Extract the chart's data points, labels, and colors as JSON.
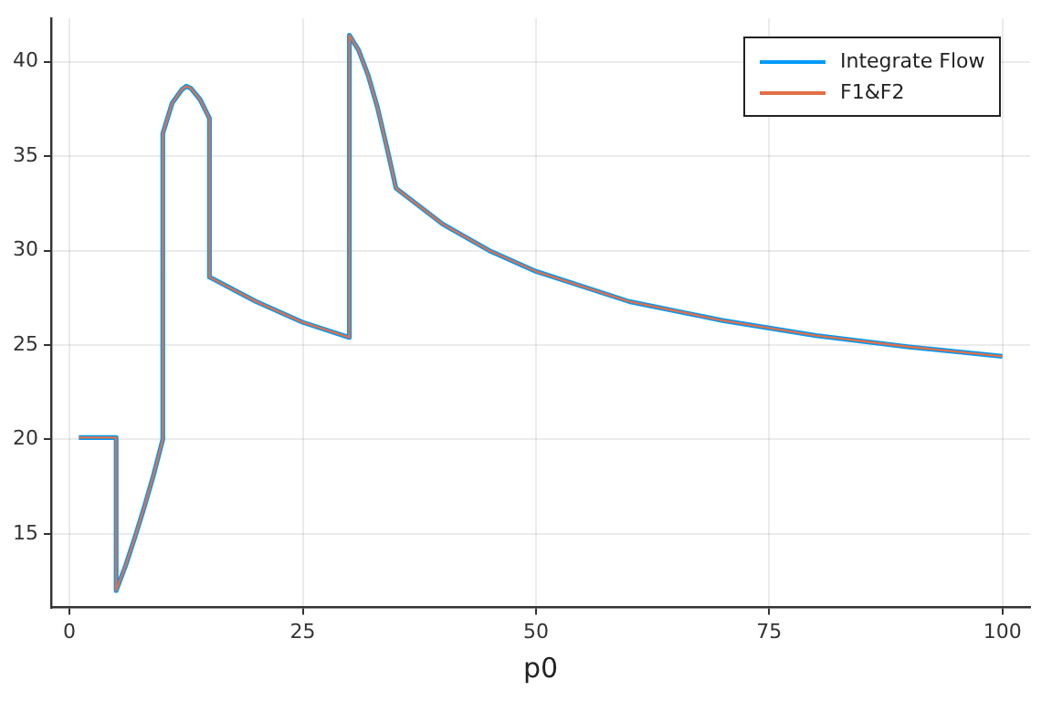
{
  "chart_data": {
    "type": "line",
    "xlabel": "p0",
    "xlim": [
      -1.97,
      102.97
    ],
    "ylim": [
      11.1,
      42.3
    ],
    "xticks": [
      0,
      25,
      50,
      75,
      100
    ],
    "yticks": [
      15,
      20,
      25,
      30,
      35,
      40
    ],
    "grid": true,
    "legend": "top right",
    "series": [
      {
        "name": "Integrate Flow",
        "color": "#009af9",
        "x": [
          1,
          5,
          5,
          6,
          7,
          8,
          9,
          10,
          10,
          11,
          12,
          12.5,
          13,
          14,
          15,
          15,
          20,
          25,
          30,
          30,
          31,
          32,
          33,
          34,
          35,
          40,
          45,
          50,
          60,
          70,
          80,
          90,
          100
        ],
        "values": [
          20.1,
          20.1,
          12,
          13.3,
          14.8,
          16.4,
          18.1,
          20,
          36.2,
          37.8,
          38.5,
          38.7,
          38.6,
          38,
          37,
          28.6,
          27.3,
          26.2,
          25.4,
          41.4,
          40.6,
          39.3,
          37.6,
          35.5,
          33.3,
          31.4,
          30,
          28.9,
          27.3,
          26.3,
          25.5,
          24.9,
          24.4
        ]
      },
      {
        "name": "F1&F2",
        "color": "#e26f46",
        "x": [
          1,
          5,
          5,
          6,
          7,
          8,
          9,
          10,
          10,
          11,
          12,
          12.5,
          13,
          14,
          15,
          15,
          20,
          25,
          30,
          30,
          31,
          32,
          33,
          34,
          35,
          40,
          45,
          50,
          60,
          70,
          80,
          90,
          100
        ],
        "values": [
          20.1,
          20.1,
          12,
          13.3,
          14.8,
          16.4,
          18.1,
          20,
          36.2,
          37.8,
          38.5,
          38.7,
          38.6,
          38,
          37,
          28.6,
          27.3,
          26.2,
          25.4,
          41.4,
          40.6,
          39.3,
          37.6,
          35.5,
          33.3,
          31.4,
          30,
          28.9,
          27.3,
          26.3,
          25.5,
          24.9,
          24.4
        ]
      }
    ]
  }
}
